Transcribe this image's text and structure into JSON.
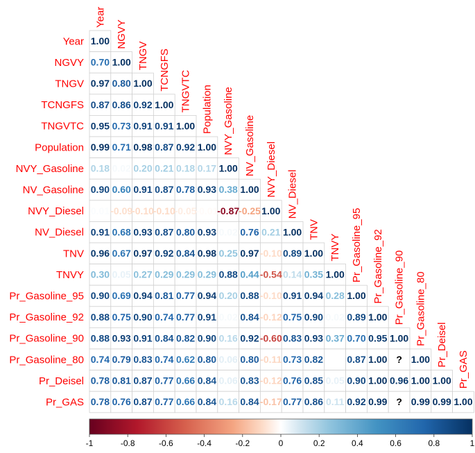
{
  "chart_data": {
    "type": "heatmap",
    "variables": [
      "Year",
      "NGVY",
      "TNGV",
      "TCNGFS",
      "TNGVTC",
      "Population",
      "NVY_Gasoline",
      "NV_Gasoline",
      "NVY_Diesel",
      "NV_Diesel",
      "TNV",
      "TNVY",
      "Pr_Gasoline_95",
      "Pr_Gasoline_92",
      "Pr_Gasoline_90",
      "Pr_Gasoline_80",
      "Pr_Deisel",
      "Pr_GAS"
    ],
    "column_labels": [
      "Year",
      "NGVY",
      "TNGV",
      "TCNGFS",
      "TNGVTC",
      "Population",
      "NVY_Gasoline",
      "NV_Gasoline",
      "NVY_Diesel",
      "NV_Diesel",
      "TNV",
      "TNVY",
      "Pr_Gasoline_95",
      "Pr_Gasoline_92",
      "Pr_Gasoline_90",
      "Pr_Gasoline_80",
      "Pr_Deisel",
      "Pr_GAS"
    ],
    "matrix": [
      [
        1.0
      ],
      [
        0.7,
        1.0
      ],
      [
        0.97,
        0.8,
        1.0
      ],
      [
        0.87,
        0.86,
        0.92,
        1.0
      ],
      [
        0.95,
        0.73,
        0.91,
        0.91,
        1.0
      ],
      [
        0.99,
        0.71,
        0.98,
        0.87,
        0.92,
        1.0
      ],
      [
        0.18,
        0.02,
        0.2,
        0.21,
        0.18,
        0.17,
        1.0
      ],
      [
        0.9,
        0.6,
        0.91,
        0.87,
        0.78,
        0.93,
        0.38,
        1.0
      ],
      [
        0.01,
        -0.09,
        -0.1,
        -0.1,
        -0.05,
        -0.01,
        -0.87,
        -0.25,
        1.0
      ],
      [
        0.91,
        0.68,
        0.93,
        0.87,
        0.8,
        0.93,
        0.02,
        0.76,
        0.21,
        1.0
      ],
      [
        0.96,
        0.67,
        0.97,
        0.92,
        0.84,
        0.98,
        0.25,
        0.97,
        -0.1,
        0.89,
        1.0
      ],
      [
        0.3,
        0.05,
        0.27,
        0.29,
        0.29,
        0.29,
        0.88,
        0.44,
        -0.54,
        0.14,
        0.35,
        1.0
      ],
      [
        0.9,
        0.69,
        0.94,
        0.81,
        0.77,
        0.94,
        0.2,
        0.88,
        -0.1,
        0.91,
        0.94,
        0.28,
        1.0
      ],
      [
        0.88,
        0.75,
        0.9,
        0.74,
        0.77,
        0.91,
        0.02,
        0.84,
        -0.12,
        0.75,
        0.9,
        0.02,
        0.89,
        1.0
      ],
      [
        0.88,
        0.93,
        0.91,
        0.84,
        0.82,
        0.9,
        0.16,
        0.92,
        -0.6,
        0.83,
        0.93,
        0.37,
        0.7,
        0.95,
        1.0
      ],
      [
        0.74,
        0.79,
        0.83,
        0.74,
        0.62,
        0.8,
        0.06,
        0.8,
        -0.11,
        0.73,
        0.82,
        null,
        0.87,
        1.0,
        "?",
        1.0
      ],
      [
        0.78,
        0.81,
        0.87,
        0.77,
        0.66,
        0.84,
        0.06,
        0.83,
        -0.12,
        0.76,
        0.85,
        0.05,
        0.9,
        1.0,
        0.96,
        1.0,
        1.0
      ],
      [
        0.78,
        0.76,
        0.87,
        0.77,
        0.66,
        0.84,
        0.16,
        0.84,
        -0.17,
        0.77,
        0.86,
        0.11,
        0.92,
        0.99,
        "?",
        0.99,
        0.99,
        1.0
      ]
    ],
    "colorbar": {
      "min": -1,
      "max": 1,
      "ticks": [
        "-1",
        "-0.8",
        "-0.6",
        "-0.4",
        "-0.2",
        "0",
        "0.2",
        "0.4",
        "0.6",
        "0.8",
        "1"
      ]
    },
    "colors": {
      "negative_end": "#67001f",
      "neutral": "#ffffff",
      "positive_end": "#053061",
      "label": "#ff0000"
    }
  }
}
